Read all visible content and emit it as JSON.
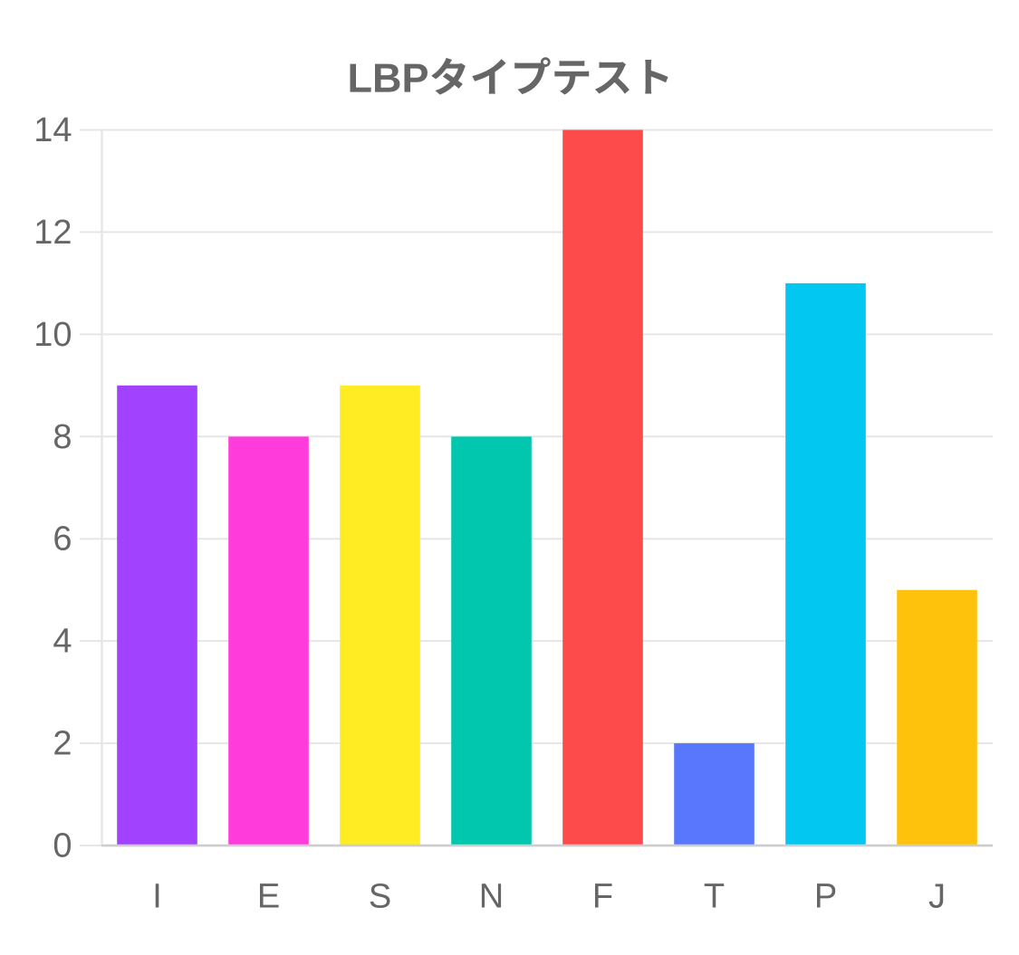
{
  "page": {
    "background": "#ffffff"
  },
  "chart_data": {
    "type": "bar",
    "title": "LBPタイプテスト",
    "categories": [
      "I",
      "E",
      "S",
      "N",
      "F",
      "T",
      "P",
      "J"
    ],
    "values": [
      9,
      8,
      9,
      8,
      14,
      2,
      11,
      5
    ],
    "series": [
      {
        "name": "LBPタイプテスト",
        "values": [
          9,
          8,
          9,
          8,
          14,
          2,
          11,
          5
        ]
      }
    ],
    "bar_colors": [
      "#a142ff",
      "#ff3cdb",
      "#ffec22",
      "#00c7ae",
      "#fd4b4b",
      "#5877fd",
      "#02c7f0",
      "#fec20c"
    ],
    "xlabel": "",
    "ylabel": "",
    "ylim": [
      0,
      14
    ],
    "ytick_step": 2,
    "yticks": [
      0,
      2,
      4,
      6,
      8,
      10,
      12,
      14
    ],
    "grid": true,
    "legend_position": "none",
    "title_color": "#666666",
    "tick_color": "#666666",
    "grid_color": "#e6e6e6",
    "axis_baseline_color": "#cdcdcd"
  }
}
